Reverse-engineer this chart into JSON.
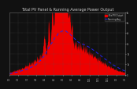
{
  "title": "Total PV Panel & Running Average Power Output",
  "title_fontsize": 3.5,
  "bg_color": "#111111",
  "plot_bg_color": "#111111",
  "grid_color": "#555555",
  "bar_color": "#ee0000",
  "avg_color": "#2222ee",
  "legend_pv_color": "#ee0000",
  "legend_avg_color": "#2222ee",
  "legend_pv": "Total PV Output",
  "legend_avg": "Running Avg",
  "n_points": 500,
  "ylim_max": 6000,
  "ylabel_right_ticks": [
    "0",
    "1k",
    "2k",
    "3k",
    "4k",
    "5k",
    "6k"
  ],
  "ytick_vals": [
    0,
    1000,
    2000,
    3000,
    4000,
    5000,
    6000
  ],
  "text_color": "#cccccc"
}
